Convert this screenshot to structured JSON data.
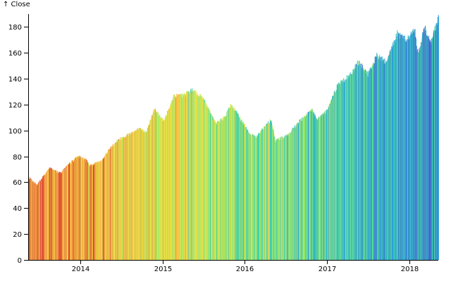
{
  "chart_data": {
    "type": "bar",
    "y_axis_label": "↑ Close",
    "ylim": [
      0,
      190
    ],
    "y_ticks": [
      0,
      20,
      40,
      60,
      80,
      100,
      120,
      140,
      160,
      180
    ],
    "y_tick_labels": [
      "0",
      "20",
      "40",
      "60",
      "80",
      "100",
      "120",
      "140",
      "160",
      "180"
    ],
    "x_domain": [
      "2013-05-13",
      "2018-05-11"
    ],
    "x_ticks": [
      "2014-01-01",
      "2015-01-01",
      "2016-01-01",
      "2017-01-01",
      "2018-01-01"
    ],
    "x_tick_labels": [
      "2014",
      "2015",
      "2016",
      "2017",
      "2018"
    ],
    "color_scheme": [
      "#d9382a",
      "#f4a53c",
      "#f1dc3a",
      "#a4e95b",
      "#3bd0a6",
      "#2aa2d7",
      "#3a64c7",
      "#3b2b86"
    ],
    "close_keypoints": [
      [
        "2013-05-13",
        64
      ],
      [
        "2013-06-20",
        58
      ],
      [
        "2013-08-15",
        71
      ],
      [
        "2013-10-01",
        67
      ],
      [
        "2013-11-15",
        75
      ],
      [
        "2013-12-20",
        80
      ],
      [
        "2014-01-28",
        77
      ],
      [
        "2014-02-10",
        73
      ],
      [
        "2014-04-01",
        76
      ],
      [
        "2014-05-05",
        85
      ],
      [
        "2014-06-10",
        92
      ],
      [
        "2014-08-01",
        97
      ],
      [
        "2014-09-15",
        101
      ],
      [
        "2014-10-20",
        99
      ],
      [
        "2014-11-25",
        117
      ],
      [
        "2015-01-05",
        107
      ],
      [
        "2015-02-20",
        127
      ],
      [
        "2015-04-01",
        127
      ],
      [
        "2015-05-10",
        131
      ],
      [
        "2015-06-30",
        125
      ],
      [
        "2015-08-24",
        105
      ],
      [
        "2015-10-01",
        110
      ],
      [
        "2015-11-01",
        120
      ],
      [
        "2015-12-15",
        108
      ],
      [
        "2016-01-25",
        97
      ],
      [
        "2016-02-20",
        95
      ],
      [
        "2016-04-25",
        108
      ],
      [
        "2016-05-15",
        92
      ],
      [
        "2016-07-15",
        97
      ],
      [
        "2016-08-30",
        107
      ],
      [
        "2016-10-25",
        116
      ],
      [
        "2016-11-15",
        108
      ],
      [
        "2017-01-03",
        116
      ],
      [
        "2017-02-15",
        135
      ],
      [
        "2017-04-15",
        143
      ],
      [
        "2017-05-20",
        153
      ],
      [
        "2017-07-01",
        143
      ],
      [
        "2017-08-10",
        158
      ],
      [
        "2017-09-20",
        153
      ],
      [
        "2017-11-08",
        175
      ],
      [
        "2017-12-20",
        170
      ],
      [
        "2018-01-25",
        178
      ],
      [
        "2018-02-08",
        158
      ],
      [
        "2018-03-10",
        180
      ],
      [
        "2018-04-05",
        167
      ],
      [
        "2018-05-11",
        188
      ]
    ]
  }
}
